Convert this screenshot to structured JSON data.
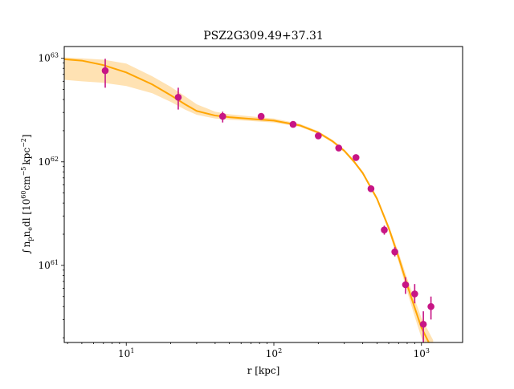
{
  "chart_data": {
    "type": "scatter",
    "title": "PSZ2G309.49+37.31",
    "xlabel": "r [kpc]",
    "ylabel": "∫ n",
    "ylabel_parts": {
      "integral": "∫",
      "n1": "n",
      "sub_p": "p",
      "n2": "n",
      "sub_e": "e",
      "dl": "dl [10",
      "exp60": "60",
      "cm": "cm",
      "exp5": "−5",
      "kpc": "kpc",
      "exp2": "−2",
      "close": "]"
    },
    "x_scale": "log",
    "y_scale": "log",
    "xlim": [
      3.8,
      1900
    ],
    "ylim": [
      1.8e+60,
      1.3e+63
    ],
    "x_ticks": [
      {
        "base": "10",
        "exp": "1",
        "value": 10
      },
      {
        "base": "10",
        "exp": "2",
        "value": 100
      },
      {
        "base": "10",
        "exp": "3",
        "value": 1000
      }
    ],
    "y_ticks": [
      {
        "base": "10",
        "exp": "61",
        "value": 1e+61
      },
      {
        "base": "10",
        "exp": "62",
        "value": 1e+62
      },
      {
        "base": "10",
        "exp": "63",
        "value": 1e+63
      }
    ],
    "grid": false,
    "colors": {
      "points": "#c71585",
      "model_line": "#ffa500",
      "model_band": "#ffd89a"
    },
    "data_points": [
      {
        "x": 7.2,
        "y": 7.6e+62,
        "ylo": 5.2e+62,
        "yhi": 9.9e+62
      },
      {
        "x": 22.5,
        "y": 4.2e+62,
        "ylo": 3.2e+62,
        "yhi": 5.2e+62
      },
      {
        "x": 45,
        "y": 2.75e+62,
        "ylo": 2.4e+62,
        "yhi": 3.05e+62
      },
      {
        "x": 82,
        "y": 2.75e+62,
        "ylo": 2.55e+62,
        "yhi": 2.95e+62
      },
      {
        "x": 135,
        "y": 2.3e+62,
        "ylo": 2.2e+62,
        "yhi": 2.4e+62
      },
      {
        "x": 200,
        "y": 1.78e+62,
        "ylo": 1.72e+62,
        "yhi": 1.84e+62
      },
      {
        "x": 275,
        "y": 1.36e+62,
        "ylo": 1.31e+62,
        "yhi": 1.41e+62
      },
      {
        "x": 360,
        "y": 1.1e+62,
        "ylo": 1.05e+62,
        "yhi": 1.15e+62
      },
      {
        "x": 455,
        "y": 5.5e+61,
        "ylo": 5.2e+61,
        "yhi": 5.8e+61
      },
      {
        "x": 560,
        "y": 2.2e+61,
        "ylo": 1.98e+61,
        "yhi": 2.42e+61
      },
      {
        "x": 660,
        "y": 1.35e+61,
        "ylo": 1.22e+61,
        "yhi": 1.5e+61
      },
      {
        "x": 780,
        "y": 6.5e+60,
        "ylo": 5.3e+60,
        "yhi": 7.7e+60
      },
      {
        "x": 900,
        "y": 5.3e+60,
        "ylo": 4.3e+60,
        "yhi": 6.6e+60
      },
      {
        "x": 1030,
        "y": 2.7e+60,
        "ylo": 1.8e+60,
        "yhi": 3.6e+60
      },
      {
        "x": 1160,
        "y": 4e+60,
        "ylo": 3e+60,
        "yhi": 5e+60
      }
    ],
    "model": {
      "x": [
        3.8,
        5,
        7,
        10,
        15,
        20,
        25,
        30,
        40,
        50,
        70,
        100,
        150,
        200,
        250,
        300,
        350,
        400,
        500,
        600,
        700,
        800,
        900,
        1000,
        1100,
        1200
      ],
      "y": [
        9.8e+62,
        9.5e+62,
        8.6e+62,
        7.3e+62,
        5.6e+62,
        4.4e+62,
        3.6e+62,
        3.1e+62,
        2.8e+62,
        2.7e+62,
        2.6e+62,
        2.5e+62,
        2.25e+62,
        1.92e+62,
        1.58e+62,
        1.28e+62,
        1e+62,
        7.8e+61,
        4.4e+61,
        2.3e+61,
        1.2e+61,
        6.5e+60,
        3.9e+60,
        2.5e+60,
        1.9e+60,
        1.5e+60
      ],
      "ylo": [
        6.2e+62,
        6e+62,
        5.8e+62,
        5.4e+62,
        4.6e+62,
        3.8e+62,
        3.2e+62,
        2.85e+62,
        2.62e+62,
        2.55e+62,
        2.48e+62,
        2.4e+62,
        2.18e+62,
        1.86e+62,
        1.53e+62,
        1.24e+62,
        9.7e+61,
        7.5e+61,
        4.2e+61,
        2.15e+61,
        1.08e+61,
        5.6e+60,
        3.2e+60,
        2e+60,
        1.5e+60,
        1.2e+60
      ],
      "yhi": [
        1.02e+63,
        1e+63,
        9.7e+62,
        8.9e+62,
        6.7e+62,
        5.3e+62,
        4.3e+62,
        3.6e+62,
        3.05e+62,
        2.88e+62,
        2.75e+62,
        2.62e+62,
        2.33e+62,
        1.98e+62,
        1.63e+62,
        1.32e+62,
        1.04e+62,
        8.1e+61,
        4.6e+61,
        2.45e+61,
        1.33e+61,
        7.5e+60,
        4.7e+60,
        3.1e+60,
        2.4e+60,
        1.9e+60
      ]
    }
  }
}
